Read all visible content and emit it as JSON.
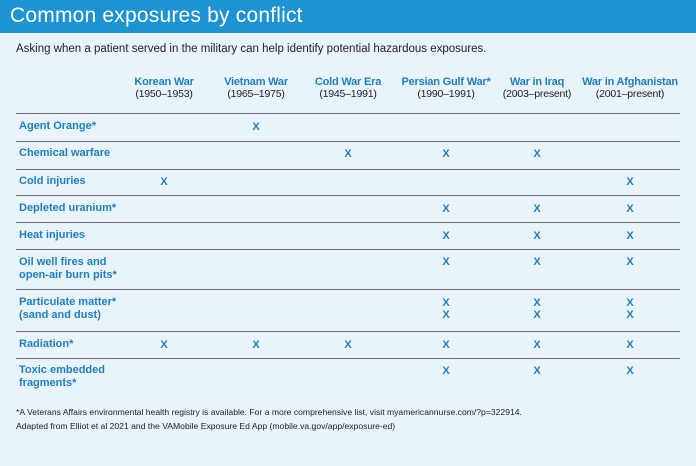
{
  "title": "Common exposures by conflict",
  "intro": "Asking when a patient served in the military can help identify potential hazardous exposures.",
  "colors": {
    "title_bar": "#1e93d2",
    "accent": "#1e7fc0",
    "background": "#e9f3fa"
  },
  "columns": [
    {
      "name": "Korean War",
      "years": "(1950–1953)"
    },
    {
      "name": "Vietnam War",
      "years": "(1965–1975)"
    },
    {
      "name": "Cold War Era",
      "years": "(1945–1991)"
    },
    {
      "name": "Persian Gulf War*",
      "years": "(1990–1991)"
    },
    {
      "name": "War in Iraq",
      "years": "(2003–present)"
    },
    {
      "name": "War in Afghanistan",
      "years": "(2001–present)"
    }
  ],
  "mark_symbol": "X",
  "rows": [
    {
      "label": [
        "Agent Orange*"
      ],
      "marks": [
        0,
        1,
        0,
        0,
        0,
        0
      ]
    },
    {
      "label": [
        "Chemical warfare"
      ],
      "marks": [
        0,
        0,
        1,
        1,
        1,
        0
      ]
    },
    {
      "label": [
        "Cold injuries"
      ],
      "marks": [
        1,
        0,
        0,
        0,
        0,
        1
      ]
    },
    {
      "label": [
        "Depleted uranium*"
      ],
      "marks": [
        0,
        0,
        0,
        1,
        1,
        1
      ]
    },
    {
      "label": [
        "Heat injuries"
      ],
      "marks": [
        0,
        0,
        0,
        1,
        1,
        1
      ]
    },
    {
      "label": [
        "Oil well fires and",
        "open-air burn pits*"
      ],
      "marks": [
        0,
        0,
        0,
        1,
        1,
        1
      ]
    },
    {
      "label": [
        "Particulate matter*",
        "(sand and dust)"
      ],
      "marks": [
        0,
        0,
        0,
        2,
        2,
        2
      ]
    },
    {
      "label": [
        "Radiation*"
      ],
      "marks": [
        1,
        1,
        1,
        1,
        1,
        1
      ]
    },
    {
      "label": [
        "Toxic embedded",
        "fragments*"
      ],
      "marks": [
        0,
        0,
        0,
        1,
        1,
        1
      ]
    }
  ],
  "footnotes": [
    "*A Veterans Affairs environmental health registry is available. For a more comprehensive list, visit myamericannurse.com/?p=322914.",
    "Adapted from Elliot et al 2021 and the VAMobile Exposure Ed App (mobile.va.gov/app/exposure-ed)"
  ]
}
